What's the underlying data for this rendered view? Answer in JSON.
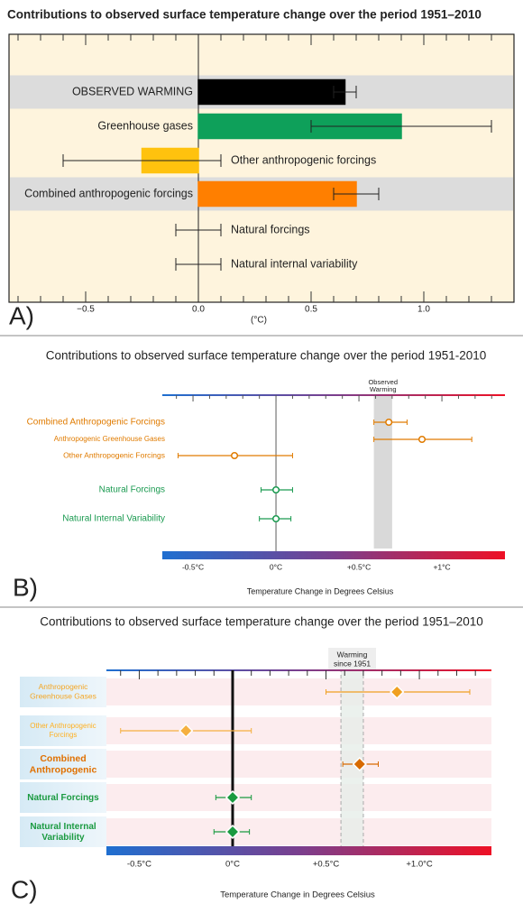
{
  "chart_data": [
    {
      "type": "hbar",
      "panel_label": "A)",
      "title": "Contributions to observed surface temperature change over the period 1951–2010",
      "xlabel": "(°C)",
      "categories": [
        "OBSERVED WARMING",
        "Greenhouse gases",
        "Other anthropogenic forcings",
        "Combined anthropogenic forcings",
        "Natural forcings",
        "Natural internal variability"
      ],
      "values": [
        0.65,
        0.9,
        -0.25,
        0.7,
        0,
        0
      ],
      "low": [
        0.6,
        0.5,
        -0.6,
        0.6,
        -0.1,
        -0.1
      ],
      "high": [
        0.7,
        1.3,
        0.1,
        0.8,
        0.1,
        0.1
      ],
      "colors": [
        "#000000",
        "#0ea05a",
        "#ffc20e",
        "#ff7f00",
        "#3b3fa0",
        "none"
      ],
      "shaded_rows": [
        0,
        3
      ],
      "xlim": [
        -0.84,
        1.4
      ],
      "xticks": [
        {
          "value": -0.5,
          "label": "−0.5"
        },
        {
          "value": 0,
          "label": "0.0"
        },
        0.5,
        {
          "value": 1,
          "label": "1.0"
        }
      ],
      "minor_xticks": [
        -0.8,
        -0.7,
        -0.6,
        -0.4,
        -0.3,
        -0.2,
        -0.1,
        0.1,
        0.2,
        0.3,
        0.4,
        0.6,
        0.7,
        0.8,
        0.9,
        1.1,
        1.2,
        1.3
      ]
    },
    {
      "type": "dot",
      "panel_label": "B)",
      "title": "Contributions to observed surface temperature change over the period 1951-2010",
      "xlabel": "Temperature Change in Degrees Celsius",
      "annotation": [
        "Observed",
        "Warming"
      ],
      "band": [
        0.59,
        0.7
      ],
      "categories": [
        "Combined Anthropogenic Forcings",
        "Anthropogenic Greenhouse Gases",
        "Other Anthropogenic Forcings",
        "Natural Forcings",
        "Natural Internal Variability"
      ],
      "values": [
        0.68,
        0.88,
        -0.25,
        0,
        0
      ],
      "low": [
        0.59,
        0.59,
        -0.59,
        -0.09,
        -0.1
      ],
      "high": [
        0.79,
        1.18,
        0.1,
        0.1,
        0.09
      ],
      "colors": [
        "#e07b00",
        "#e07b00",
        "#e07b00",
        "#1a9a50",
        "#1a9a50"
      ],
      "xlim": [
        -0.685,
        1.38
      ],
      "xticks": [
        {
          "value": -0.5,
          "label": "-0.5°C"
        },
        {
          "value": 0,
          "label": "0°C"
        },
        {
          "value": 0.5,
          "label": "+0.5°C"
        },
        {
          "value": 1,
          "label": "+1°C"
        }
      ],
      "minor_xticks": [
        -0.6,
        -0.4,
        -0.3,
        -0.2,
        -0.1,
        0.1,
        0.2,
        0.3,
        0.4,
        0.6,
        0.7,
        0.8,
        0.9,
        1.1,
        1.2,
        1.3
      ]
    },
    {
      "type": "diamond",
      "panel_label": "C)",
      "title": "Contributions to observed surface temperature change over the period 1951–2010",
      "xlabel": "Temperature Change  in Degrees Celsius",
      "annotation": [
        "Warming",
        "since 1951"
      ],
      "band": [
        0.58,
        0.7
      ],
      "categories": [
        [
          "Anthropogenic",
          "Greenhouse Gases"
        ],
        [
          "Other Anthropogenic",
          "Forcings"
        ],
        [
          "Combined",
          "Anthropogenic"
        ],
        [
          "Natural Forcings"
        ],
        [
          "Natural Internal",
          "Variability"
        ]
      ],
      "values": [
        0.88,
        -0.25,
        0.68,
        0,
        0
      ],
      "low": [
        0.5,
        -0.6,
        0.59,
        -0.09,
        -0.1
      ],
      "high": [
        1.27,
        0.1,
        0.78,
        0.1,
        0.09
      ],
      "colors": [
        "#f0a020",
        "#f5b040",
        "#d86a00",
        "#1a9a40",
        "#1a9a40"
      ],
      "xlim": [
        -0.676,
        1.386
      ],
      "xticks": [
        {
          "value": -0.5,
          "label": "-0.5°C"
        },
        {
          "value": 0,
          "label": "0°C"
        },
        {
          "value": 0.5,
          "label": "+0.5°C"
        },
        {
          "value": 1,
          "label": "+1.0°C"
        }
      ],
      "minor_xticks": [
        -0.6,
        -0.4,
        -0.3,
        -0.2,
        -0.1,
        0.1,
        0.2,
        0.3,
        0.4,
        0.6,
        0.7,
        0.8,
        0.9,
        1.1,
        1.2,
        1.3
      ]
    }
  ]
}
